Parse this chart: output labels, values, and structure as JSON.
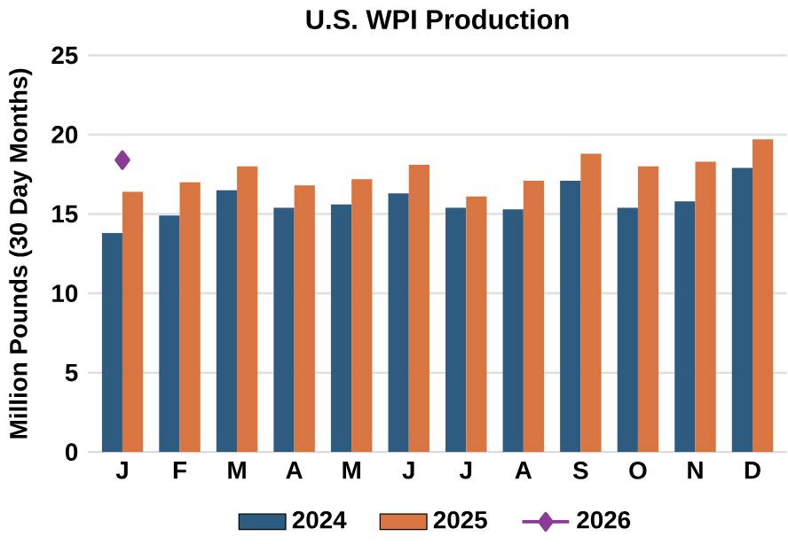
{
  "chart_data": {
    "type": "bar",
    "title": "U.S. WPI Production",
    "ylabel": "Million Pounds (30 Day Months)",
    "categories": [
      "J",
      "F",
      "M",
      "A",
      "M",
      "J",
      "J",
      "A",
      "S",
      "O",
      "N",
      "D"
    ],
    "series": [
      {
        "name": "2024",
        "color": "#2e5c80",
        "values": [
          13.8,
          14.9,
          16.5,
          15.4,
          15.6,
          16.3,
          15.4,
          15.3,
          17.1,
          15.4,
          15.8,
          17.9
        ]
      },
      {
        "name": "2025",
        "color": "#d97540",
        "values": [
          16.4,
          17.0,
          18.0,
          16.8,
          17.2,
          18.1,
          16.1,
          17.1,
          18.8,
          18.0,
          18.3,
          19.7
        ]
      },
      {
        "name": "2026",
        "color": "#8b3a96",
        "type": "line",
        "marker": "diamond",
        "values": [
          18.4,
          null,
          null,
          null,
          null,
          null,
          null,
          null,
          null,
          null,
          null,
          null
        ]
      }
    ],
    "ylim": [
      0,
      25
    ],
    "yticks": [
      0,
      5,
      10,
      15,
      20,
      25
    ],
    "grid": "y",
    "legend": "bottom"
  }
}
